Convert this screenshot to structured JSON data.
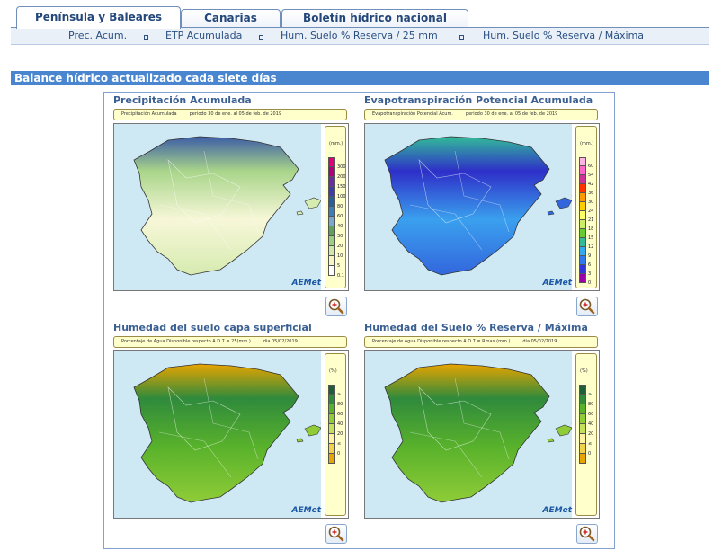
{
  "tabs": [
    {
      "label": "Península y Baleares",
      "active": true
    },
    {
      "label": "Canarias",
      "active": false
    },
    {
      "label": "Boletín hídrico nacional",
      "active": false
    }
  ],
  "subnav": [
    {
      "label": "Prec. Acum."
    },
    {
      "label": "ETP Acumulada"
    },
    {
      "label": "Hum. Suelo % Reserva / 25 mm"
    },
    {
      "label": "Hum. Suelo % Reserva / Máxima"
    }
  ],
  "section_title": "Balance hídrico actualizado cada siete días",
  "maps": [
    {
      "title": "Precipitación Acumulada",
      "info_left": "Precipitación Acumulada",
      "info_right": "periodo 30 de ene. al 05 de feb. de 2019",
      "unit": "(mm.)",
      "legend_labels": [
        "300",
        "200",
        "150",
        "100",
        "80",
        "60",
        "40",
        "30",
        "20",
        "10",
        "5",
        "0.1"
      ],
      "legend_colors": [
        "#e0007a",
        "#b0007a",
        "#6b2ea0",
        "#3d3ea6",
        "#2a5f9a",
        "#3b7fb5",
        "#79a8cf",
        "#5fa05a",
        "#9ccf7f",
        "#cfe8a9",
        "#f6f6c2",
        "#ffffff"
      ]
    },
    {
      "title": "Evapotranspiración Potencial Acumulada",
      "info_left": "Evapotranspiración Potencial Acum.",
      "info_right": "periodo 30 de ene. al 05 de feb. de 2019",
      "unit": "(mm.)",
      "legend_labels": [
        "60",
        "54",
        "42",
        "36",
        "30",
        "24",
        "21",
        "18",
        "15",
        "12",
        "9",
        "6",
        "3",
        "0"
      ],
      "legend_colors": [
        "#ffb3e6",
        "#ff66cc",
        "#cc3399",
        "#ff3300",
        "#ff9900",
        "#ffcc00",
        "#ffff66",
        "#ccee66",
        "#66cc33",
        "#33bb99",
        "#33aaee",
        "#3377ee",
        "#3333dd",
        "#9900aa"
      ]
    },
    {
      "title": "Humedad del suelo capa superficial",
      "info_left": "Porcentaje de Agua Disponible respecto A.D 7 = 25(mm.)",
      "info_right": "dia 05/02/2019",
      "unit": "(%)",
      "legend_labels": [
        "≥",
        "80",
        "60",
        "40",
        "20",
        "≤",
        "0"
      ],
      "legend_colors": [
        "#1e5f3a",
        "#2f8a3c",
        "#59b22b",
        "#8fcc38",
        "#c5e05a",
        "#fff2a0",
        "#f1d24a",
        "#e8a400"
      ]
    },
    {
      "title": "Humedad del Suelo % Reserva / Máxima",
      "info_left": "Porcentaje de Agua Disponible respecto A.D 7 = Rmax (mm.)",
      "info_right": "dia 05/02/2019",
      "unit": "(%)",
      "legend_labels": [
        "≥",
        "80",
        "60",
        "40",
        "20",
        "≤",
        "0"
      ],
      "legend_colors": [
        "#1e5f3a",
        "#2f8a3c",
        "#59b22b",
        "#8fcc38",
        "#c5e05a",
        "#fff2a0",
        "#f1d24a",
        "#e8a400"
      ]
    }
  ],
  "logo_text": "AEMet",
  "colors": {
    "accent": "#4a86cf",
    "tab_border": "#6f8fba",
    "subnav_bg": "#e9f0f8",
    "panel_border": "#7fa2d0",
    "sea": "#cfe9f4",
    "infobar_bg": "#ffffcc"
  },
  "icons": {
    "zoom": "magnifier-zoom-in-icon",
    "separator": "square-bullet-icon"
  }
}
